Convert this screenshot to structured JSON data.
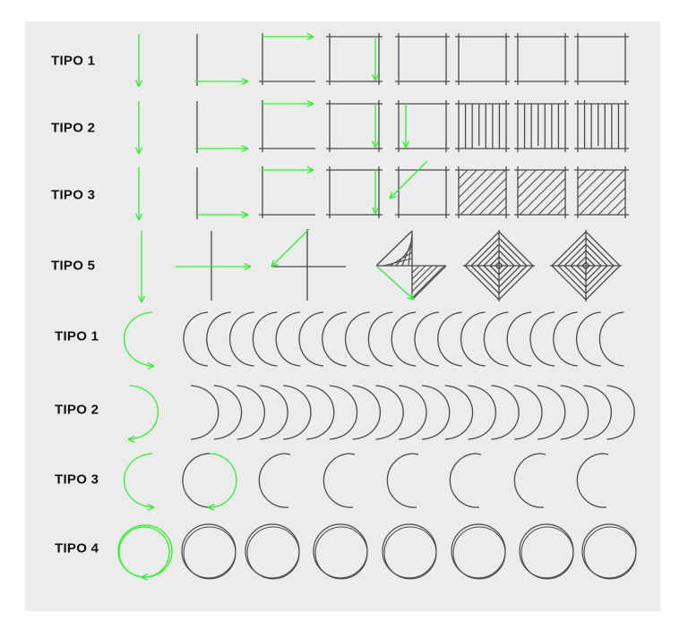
{
  "colors": {
    "background": "#ececec",
    "stroke": "#4a4a4a",
    "direction_arrow": "#2cf22c"
  },
  "rows": [
    {
      "label": "TIPO 1",
      "group": "squares"
    },
    {
      "label": "TIPO 2",
      "group": "squares-vertical-hatch"
    },
    {
      "label": "TIPO 3",
      "group": "squares-diagonal-hatch"
    },
    {
      "label": "TIPO 5",
      "group": "crosses-diamonds"
    },
    {
      "label": "TIPO 1",
      "group": "left-arcs"
    },
    {
      "label": "TIPO 2",
      "group": "right-arcs"
    },
    {
      "label": "TIPO 3",
      "group": "circles"
    },
    {
      "label": "TIPO 4",
      "group": "double-circles"
    }
  ]
}
